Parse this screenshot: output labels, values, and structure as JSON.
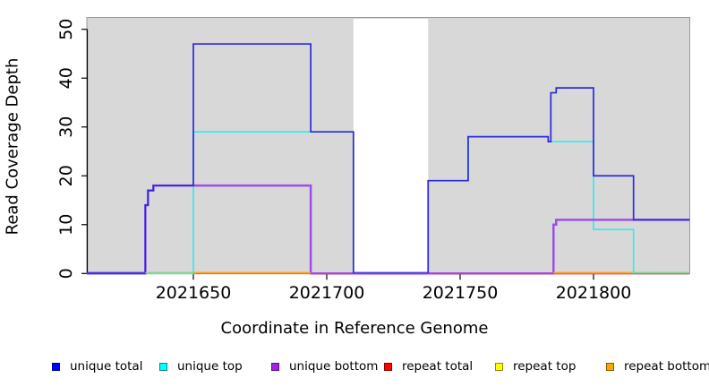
{
  "chart_data": {
    "type": "line",
    "subtype": "step-coverage",
    "title": "",
    "xlabel": "Coordinate in Reference Genome",
    "ylabel": "Read Coverage Depth",
    "xlim": [
      2021610,
      2021836
    ],
    "ylim": [
      0,
      52
    ],
    "x_ticks": [
      2021650,
      2021700,
      2021750,
      2021800
    ],
    "y_ticks": [
      0,
      10,
      20,
      30,
      40,
      50
    ],
    "grid": false,
    "legend_position": "bottom",
    "panel_fill": "#D8D8D8",
    "panel_border": "#999999",
    "shaded_regions": [
      {
        "x1": 2021610,
        "x2": 2021710,
        "fill": "#D8D8D8"
      },
      {
        "x1": 2021738,
        "x2": 2021836,
        "fill": "#D8D8D8"
      }
    ],
    "white_gap": {
      "x1": 2021710,
      "x2": 2021738
    },
    "series": [
      {
        "name": "unique total",
        "legend_color": "#0000FF",
        "line_color": "#2A2ADF",
        "width": 1.7,
        "steps": [
          [
            2021610,
            0
          ],
          [
            2021632,
            14
          ],
          [
            2021633,
            17
          ],
          [
            2021635,
            18
          ],
          [
            2021650,
            47
          ],
          [
            2021694,
            29
          ],
          [
            2021710,
            0
          ],
          [
            2021738,
            19
          ],
          [
            2021753,
            28
          ],
          [
            2021783,
            27
          ],
          [
            2021784,
            37
          ],
          [
            2021786,
            38
          ],
          [
            2021800,
            20
          ],
          [
            2021815,
            11
          ],
          [
            2021836,
            11
          ]
        ]
      },
      {
        "name": "unique top",
        "legend_color": "#00FFFF",
        "line_color": "#33EAEA",
        "width": 1.6,
        "steps": [
          [
            2021610,
            0
          ],
          [
            2021650,
            29
          ],
          [
            2021710,
            0
          ],
          [
            2021738,
            19
          ],
          [
            2021753,
            28
          ],
          [
            2021783,
            27
          ],
          [
            2021800,
            9
          ],
          [
            2021815,
            0
          ],
          [
            2021836,
            0
          ]
        ]
      },
      {
        "name": "unique bottom",
        "legend_color": "#A020F0",
        "line_color": "#9C4FE8",
        "width": 2.5,
        "steps": [
          [
            2021610,
            0
          ],
          [
            2021632,
            14
          ],
          [
            2021633,
            17
          ],
          [
            2021635,
            18
          ],
          [
            2021694,
            0
          ],
          [
            2021785,
            10
          ],
          [
            2021786,
            11
          ],
          [
            2021836,
            11
          ]
        ]
      },
      {
        "name": "repeat total",
        "legend_color": "#FF0000",
        "line_color": "#E8395C",
        "width": 1.3,
        "steps": [
          [
            2021610,
            0
          ],
          [
            2021836,
            0
          ]
        ]
      },
      {
        "name": "repeat top",
        "legend_color": "#FFFF00",
        "line_color": "#F2F200",
        "width": 1.5,
        "steps": [
          [
            2021610,
            0
          ],
          [
            2021836,
            0
          ]
        ]
      },
      {
        "name": "repeat bottom",
        "legend_color": "#FFA500",
        "line_color": "#FF9D00",
        "width": 1.7,
        "steps": [
          [
            2021610,
            0
          ],
          [
            2021836,
            0
          ]
        ]
      }
    ],
    "draw_order": [
      4,
      5,
      3,
      1,
      2,
      0
    ],
    "baseline_segments": [
      {
        "x1": 2021694,
        "x2": 2021836,
        "y": 305.0,
        "h": 1.3,
        "color": "#E8395C"
      },
      {
        "x1": 2021610,
        "x2": 2021632,
        "y": 303.6,
        "h": 1.8,
        "color": "#4A3AE4"
      },
      {
        "x1": 2021632,
        "x2": 2021650,
        "y": 303.6,
        "h": 1.8,
        "color": "#7FD795"
      },
      {
        "x1": 2021650,
        "x2": 2021694,
        "y": 303.6,
        "h": 1.8,
        "color": "#FF9E20"
      },
      {
        "x1": 2021710,
        "x2": 2021738,
        "y": 303.6,
        "h": 1.8,
        "color": "#4040E6"
      },
      {
        "x1": 2021785,
        "x2": 2021814,
        "y": 303.6,
        "h": 1.8,
        "color": "#FF9E20"
      },
      {
        "x1": 2021814,
        "x2": 2021836,
        "y": 303.6,
        "h": 1.8,
        "color": "#7FD795"
      }
    ],
    "legend_items": [
      {
        "label": "unique total",
        "color": "#0000FF",
        "x": 58
      },
      {
        "label": "unique top",
        "color": "#00FFFF",
        "x": 178
      },
      {
        "label": "unique bottom",
        "color": "#A020F0",
        "x": 303
      },
      {
        "label": "repeat total",
        "color": "#FF0000",
        "x": 429
      },
      {
        "label": "repeat top",
        "color": "#FFFF00",
        "x": 553
      },
      {
        "label": "repeat bottom",
        "color": "#FFA500",
        "x": 677
      }
    ]
  }
}
